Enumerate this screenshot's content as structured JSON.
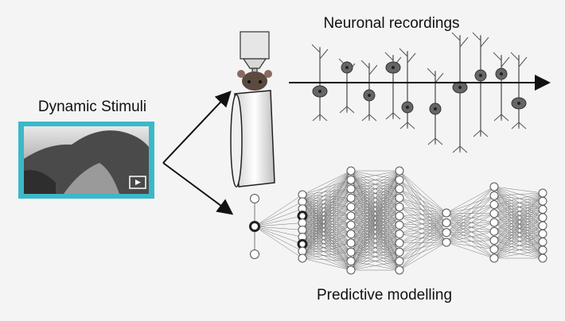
{
  "stimulus": {
    "title": "Dynamic Stimuli"
  },
  "recordings": {
    "title": "Neuronal recordings"
  },
  "model": {
    "title": "Predictive modelling"
  }
}
